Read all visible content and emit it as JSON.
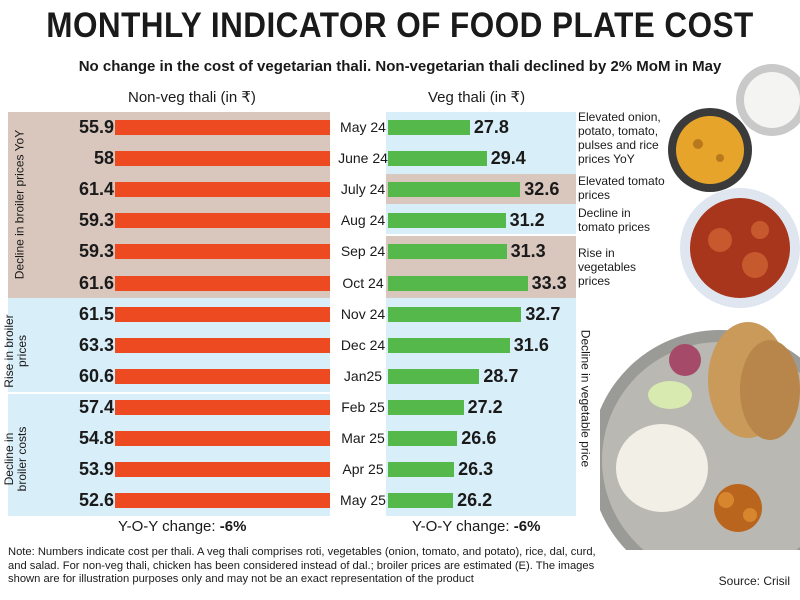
{
  "title": "MONTHLY INDICATOR OF FOOD PLATE COST",
  "subtitle": "No change in the cost of vegetarian thali. Non-vegetarian thali declined by 2% MoM in May",
  "chart_data": {
    "type": "bar",
    "orientation": "horizontal",
    "categories": [
      "May 24",
      "June 24",
      "July 24",
      "Aug 24",
      "Sep 24",
      "Oct 24",
      "Nov 24",
      "Dec 24",
      "Jan25",
      "Feb 25",
      "Mar 25",
      "Apr 25",
      "May 25"
    ],
    "series": [
      {
        "name": "Non-veg thali (in ₹)",
        "color": "#ee4a22",
        "values": [
          55.9,
          58,
          61.4,
          59.3,
          59.3,
          61.6,
          61.5,
          63.3,
          60.6,
          57.4,
          54.8,
          53.9,
          52.6
        ],
        "labels": [
          "55.9",
          "58",
          "61.4",
          "59.3",
          "59.3",
          "61.6",
          "61.5",
          "63.3",
          "60.6",
          "57.4",
          "54.8",
          "53.9",
          "52.6"
        ]
      },
      {
        "name": "Veg thali (in ₹)",
        "color": "#55b84a",
        "values": [
          27.8,
          29.4,
          32.6,
          31.2,
          31.3,
          33.3,
          32.7,
          31.6,
          28.7,
          27.2,
          26.6,
          26.3,
          26.2
        ],
        "labels": [
          "27.8",
          "29.4",
          "32.6",
          "31.2",
          "31.3",
          "33.3",
          "32.7",
          "31.6",
          "28.7",
          "27.2",
          "26.6",
          "26.3",
          "26.2"
        ]
      }
    ],
    "left_annotations": [
      "Decline in broiler prices YoY",
      "Rise in broiler prices",
      "Decline in broiler costs"
    ],
    "right_annotations": [
      "Elevated onion, potato, tomato, pulses and rice prices YoY",
      "Elevated tomato prices",
      "Decline in tomato prices",
      "Rise in vegetables prices",
      "Decline in vegetable price"
    ],
    "yoy_nonveg_label": "Y-O-Y change: ",
    "yoy_nonveg_value": "-6%",
    "yoy_veg_label": "Y-O-Y change: ",
    "yoy_veg_value": "-6%"
  },
  "note": "Note: Numbers indicate cost per thali. A veg thali comprises roti, vegetables (onion, tomato, and potato), rice, dal, curd, and salad. For non-veg thali, chicken has been considered instead of dal.; broiler prices are estimated (E). The images shown are for illustration purposes only and may not be an exact representation of the product",
  "source": "Source: Crisil",
  "colors": {
    "pink_band": "#d9c7bd",
    "blue_band": "#d8eef8",
    "nonveg": "#ee4a22",
    "veg": "#55b84a"
  }
}
